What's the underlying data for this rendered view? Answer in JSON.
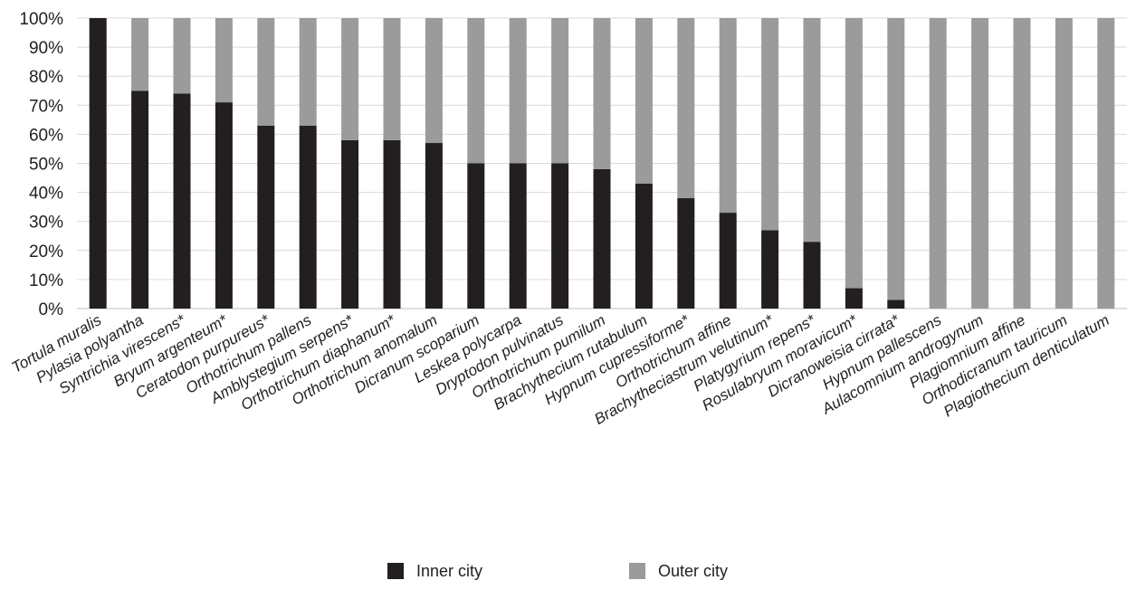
{
  "chart_data": {
    "type": "bar",
    "stacked": true,
    "percent": true,
    "categories": [
      "Tortula muralis",
      "Pylasia polyantha",
      "Syntrichia virescens*",
      "Bryum argenteum*",
      "Ceratodon purpureus*",
      "Orthotrichum pallens",
      "Amblystegium serpens*",
      "Orthotrichum diaphanum*",
      "Orthotrichum anomalum",
      "Dicranum scoparium",
      "Leskea polycarpa",
      "Dryptodon pulvinatus",
      "Orthotrichum pumilum",
      "Brachythecium rutabulum",
      "Hypnum cupressiforme*",
      "Orthotrichum affine",
      "Brachytheciastrum velutinum*",
      "Platygyrium repens*",
      "Rosulabryum moravicum*",
      "Dicranoweisia cirrata*",
      "Hypnum pallescens",
      "Aulacomnium androgynum",
      "Plagiomnium affine",
      "Orthodicranum tauricum",
      "Plagiothecium denticulatum"
    ],
    "series": [
      {
        "name": "Inner city",
        "color": "#231f20",
        "values": [
          100,
          75,
          74,
          71,
          63,
          63,
          58,
          58,
          57,
          50,
          50,
          50,
          48,
          43,
          38,
          33,
          27,
          23,
          7,
          3,
          0,
          0,
          0,
          0,
          0
        ]
      },
      {
        "name": "Outer city",
        "color": "#9b9b9b",
        "values": [
          0,
          25,
          26,
          29,
          37,
          37,
          42,
          42,
          43,
          50,
          50,
          50,
          52,
          57,
          62,
          67,
          73,
          77,
          93,
          97,
          100,
          100,
          100,
          100,
          100
        ]
      }
    ],
    "yticks": [
      "0%",
      "10%",
      "20%",
      "30%",
      "40%",
      "50%",
      "60%",
      "70%",
      "80%",
      "90%",
      "100%"
    ],
    "ylim": [
      0,
      100
    ],
    "grid": true,
    "legend_position": "bottom",
    "title": "",
    "xlabel": "",
    "ylabel": ""
  }
}
